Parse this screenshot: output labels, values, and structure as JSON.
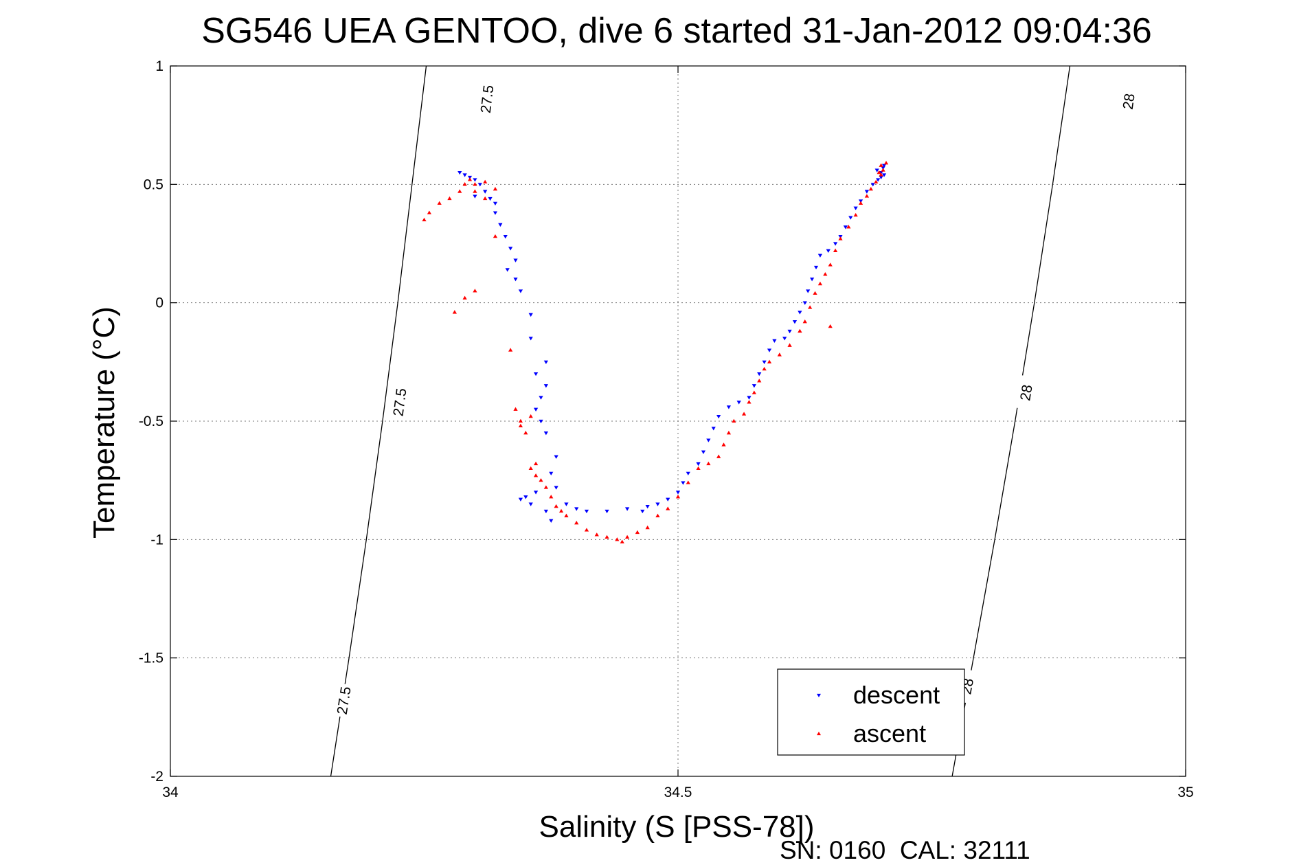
{
  "chart_data": {
    "type": "scatter",
    "title": "SG546 UEA GENTOO, dive 6 started 31-Jan-2012 09:04:36",
    "xlabel": "Salinity (S [PSS-78])",
    "ylabel": "Temperature (°C)",
    "xlim": [
      34,
      35
    ],
    "ylim": [
      -2,
      1
    ],
    "xticks": [
      34,
      34.5,
      35
    ],
    "yticks": [
      -2,
      -1.5,
      -1,
      -0.5,
      0,
      0.5,
      1
    ],
    "xtick_labels": [
      "34",
      "34.5",
      "35"
    ],
    "ytick_labels": [
      "-2",
      "-1.5",
      "-1",
      "-0.5",
      "0",
      "0.5",
      "1"
    ],
    "grid": true,
    "legend_position": "bottom-right",
    "footer": "SN: 0160  CAL: 32111",
    "contours": [
      {
        "level": "27.5",
        "points": [
          [
            34.158,
            -2.0
          ],
          [
            34.176,
            -1.5
          ],
          [
            34.193,
            -1.0
          ],
          [
            34.209,
            -0.5
          ],
          [
            34.224,
            0.0
          ],
          [
            34.238,
            0.5
          ],
          [
            34.252,
            1.0
          ]
        ],
        "label_points": [
          [
            34.171,
            -1.68
          ],
          [
            34.226,
            -0.42
          ],
          [
            34.312,
            0.86
          ]
        ]
      },
      {
        "level": "28",
        "points": [
          [
            34.77,
            -2.0
          ],
          [
            34.791,
            -1.5
          ],
          [
            34.812,
            -1.0
          ],
          [
            34.832,
            -0.5
          ],
          [
            34.851,
            0.0
          ],
          [
            34.869,
            0.5
          ],
          [
            34.886,
            1.0
          ]
        ],
        "label_points": [
          [
            34.785,
            -1.62
          ],
          [
            34.843,
            -0.38
          ],
          [
            34.944,
            0.85
          ]
        ]
      }
    ],
    "series": [
      {
        "name": "descent",
        "color": "#0000ff",
        "marker": "triangle-down",
        "points": [
          [
            34.295,
            0.53
          ],
          [
            34.29,
            0.54
          ],
          [
            34.285,
            0.55
          ],
          [
            34.3,
            0.52
          ],
          [
            34.305,
            0.5
          ],
          [
            34.31,
            0.47
          ],
          [
            34.3,
            0.45
          ],
          [
            34.315,
            0.44
          ],
          [
            34.32,
            0.42
          ],
          [
            34.32,
            0.38
          ],
          [
            34.325,
            0.33
          ],
          [
            34.33,
            0.28
          ],
          [
            34.335,
            0.23
          ],
          [
            34.34,
            0.18
          ],
          [
            34.332,
            0.14
          ],
          [
            34.34,
            0.1
          ],
          [
            34.345,
            0.05
          ],
          [
            34.355,
            -0.05
          ],
          [
            34.355,
            -0.15
          ],
          [
            34.37,
            -0.25
          ],
          [
            34.36,
            -0.3
          ],
          [
            34.37,
            -0.35
          ],
          [
            34.365,
            -0.4
          ],
          [
            34.36,
            -0.45
          ],
          [
            34.365,
            -0.5
          ],
          [
            34.37,
            -0.55
          ],
          [
            34.38,
            -0.65
          ],
          [
            34.375,
            -0.72
          ],
          [
            34.38,
            -0.78
          ],
          [
            34.36,
            -0.8
          ],
          [
            34.35,
            -0.82
          ],
          [
            34.345,
            -0.83
          ],
          [
            34.355,
            -0.85
          ],
          [
            34.37,
            -0.88
          ],
          [
            34.375,
            -0.92
          ],
          [
            34.39,
            -0.85
          ],
          [
            34.4,
            -0.87
          ],
          [
            34.41,
            -0.88
          ],
          [
            34.43,
            -0.88
          ],
          [
            34.45,
            -0.87
          ],
          [
            34.465,
            -0.88
          ],
          [
            34.47,
            -0.86
          ],
          [
            34.48,
            -0.85
          ],
          [
            34.49,
            -0.83
          ],
          [
            34.5,
            -0.8
          ],
          [
            34.505,
            -0.76
          ],
          [
            34.51,
            -0.72
          ],
          [
            34.52,
            -0.68
          ],
          [
            34.525,
            -0.63
          ],
          [
            34.53,
            -0.58
          ],
          [
            34.535,
            -0.53
          ],
          [
            34.54,
            -0.48
          ],
          [
            34.55,
            -0.44
          ],
          [
            34.56,
            -0.42
          ],
          [
            34.57,
            -0.4
          ],
          [
            34.575,
            -0.35
          ],
          [
            34.58,
            -0.3
          ],
          [
            34.585,
            -0.25
          ],
          [
            34.59,
            -0.2
          ],
          [
            34.595,
            -0.16
          ],
          [
            34.605,
            -0.15
          ],
          [
            34.61,
            -0.12
          ],
          [
            34.615,
            -0.08
          ],
          [
            34.62,
            -0.04
          ],
          [
            34.625,
            0.0
          ],
          [
            34.628,
            0.05
          ],
          [
            34.632,
            0.1
          ],
          [
            34.636,
            0.15
          ],
          [
            34.64,
            0.2
          ],
          [
            34.648,
            0.22
          ],
          [
            34.655,
            0.25
          ],
          [
            34.66,
            0.28
          ],
          [
            34.665,
            0.32
          ],
          [
            34.67,
            0.36
          ],
          [
            34.675,
            0.4
          ],
          [
            34.68,
            0.43
          ],
          [
            34.686,
            0.47
          ],
          [
            34.692,
            0.5
          ],
          [
            34.697,
            0.52
          ],
          [
            34.7,
            0.55
          ],
          [
            34.702,
            0.57
          ],
          [
            34.703,
            0.54
          ],
          [
            34.7,
            0.53
          ],
          [
            34.696,
            0.56
          ],
          [
            34.703,
            0.58
          ]
        ]
      },
      {
        "name": "ascent",
        "color": "#ff0000",
        "marker": "triangle-up",
        "points": [
          [
            34.25,
            0.35
          ],
          [
            34.255,
            0.38
          ],
          [
            34.265,
            0.42
          ],
          [
            34.275,
            0.44
          ],
          [
            34.285,
            0.47
          ],
          [
            34.29,
            0.5
          ],
          [
            34.295,
            0.52
          ],
          [
            34.3,
            0.5
          ],
          [
            34.31,
            0.51
          ],
          [
            34.32,
            0.48
          ],
          [
            34.31,
            0.44
          ],
          [
            34.3,
            0.47
          ],
          [
            34.32,
            0.28
          ],
          [
            34.3,
            0.05
          ],
          [
            34.29,
            0.02
          ],
          [
            34.28,
            -0.04
          ],
          [
            34.335,
            -0.2
          ],
          [
            34.34,
            -0.45
          ],
          [
            34.345,
            -0.5
          ],
          [
            34.345,
            -0.52
          ],
          [
            34.35,
            -0.55
          ],
          [
            34.355,
            -0.48
          ],
          [
            34.36,
            -0.68
          ],
          [
            34.355,
            -0.7
          ],
          [
            34.36,
            -0.73
          ],
          [
            34.365,
            -0.75
          ],
          [
            34.37,
            -0.78
          ],
          [
            34.375,
            -0.82
          ],
          [
            34.38,
            -0.86
          ],
          [
            34.385,
            -0.88
          ],
          [
            34.39,
            -0.9
          ],
          [
            34.4,
            -0.93
          ],
          [
            34.41,
            -0.96
          ],
          [
            34.42,
            -0.98
          ],
          [
            34.43,
            -0.99
          ],
          [
            34.44,
            -1.0
          ],
          [
            34.445,
            -1.01
          ],
          [
            34.45,
            -0.99
          ],
          [
            34.46,
            -0.97
          ],
          [
            34.47,
            -0.95
          ],
          [
            34.48,
            -0.9
          ],
          [
            34.49,
            -0.87
          ],
          [
            34.5,
            -0.82
          ],
          [
            34.51,
            -0.76
          ],
          [
            34.52,
            -0.7
          ],
          [
            34.53,
            -0.68
          ],
          [
            34.54,
            -0.65
          ],
          [
            34.545,
            -0.6
          ],
          [
            34.55,
            -0.55
          ],
          [
            34.555,
            -0.5
          ],
          [
            34.565,
            -0.47
          ],
          [
            34.57,
            -0.42
          ],
          [
            34.575,
            -0.38
          ],
          [
            34.58,
            -0.33
          ],
          [
            34.585,
            -0.28
          ],
          [
            34.59,
            -0.25
          ],
          [
            34.6,
            -0.22
          ],
          [
            34.61,
            -0.18
          ],
          [
            34.62,
            -0.12
          ],
          [
            34.625,
            -0.08
          ],
          [
            34.63,
            -0.02
          ],
          [
            34.635,
            0.04
          ],
          [
            34.64,
            0.08
          ],
          [
            34.645,
            0.12
          ],
          [
            34.65,
            0.16
          ],
          [
            34.655,
            0.22
          ],
          [
            34.66,
            0.27
          ],
          [
            34.668,
            0.32
          ],
          [
            34.675,
            0.37
          ],
          [
            34.68,
            0.42
          ],
          [
            34.686,
            0.45
          ],
          [
            34.69,
            0.48
          ],
          [
            34.695,
            0.51
          ],
          [
            34.7,
            0.54
          ],
          [
            34.702,
            0.56
          ],
          [
            34.7,
            0.58
          ],
          [
            34.705,
            0.59
          ],
          [
            34.698,
            0.55
          ],
          [
            34.65,
            -0.1
          ],
          [
            34.62,
            -0.12
          ]
        ]
      }
    ]
  }
}
